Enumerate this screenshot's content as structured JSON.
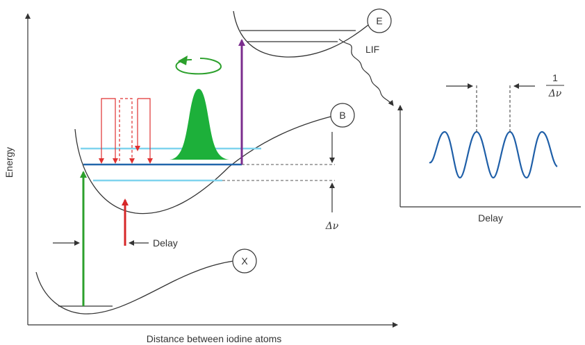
{
  "axes": {
    "y_label": "Energy",
    "x_label": "Distance between iodine atoms"
  },
  "states": {
    "E": "E",
    "B": "B",
    "X": "X"
  },
  "annotations": {
    "lif": "LIF",
    "delay_arrow": "Delay",
    "delta_nu": "Δν",
    "inset_one": "1",
    "inset_delta_nu": "Δν",
    "inset_x_label": "Delay"
  },
  "colors": {
    "pump": "#2ca02c",
    "probe": "#d62728",
    "excite": "#7b2d8e",
    "wavepacket": "#1db03a",
    "level_light": "#7fd3ee",
    "level_dark": "#2166ac",
    "signal": "#1f5fa8",
    "red_path": "#e03030"
  }
}
